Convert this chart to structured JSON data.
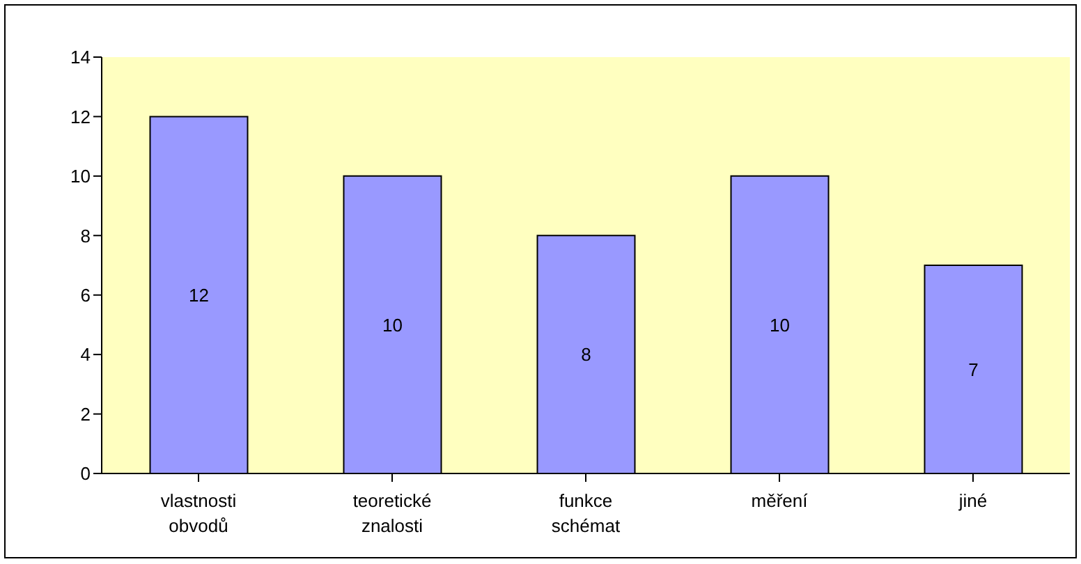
{
  "chart_data": {
    "type": "bar",
    "categories": [
      "vlastnosti obvodů",
      "teoretické znalosti",
      "funkce schémat",
      "měření",
      "jiné"
    ],
    "values": [
      12,
      10,
      8,
      10,
      7
    ],
    "color": "#9999ff",
    "data_labels": true,
    "ylim": [
      0,
      14
    ],
    "yticks": [
      0,
      2,
      4,
      6,
      8,
      10,
      12,
      14
    ],
    "grid": false
  }
}
